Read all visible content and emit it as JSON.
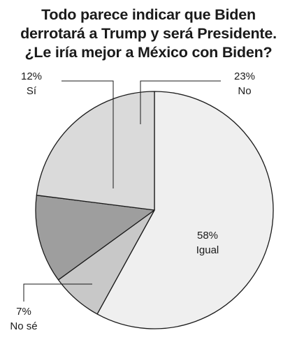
{
  "title_lines": [
    "Todo parece indicar que Biden",
    "derrotará a Trump y será Presidente.",
    "¿Le iría mejor a México con Biden?"
  ],
  "chart_data": {
    "type": "pie",
    "title": "Todo parece indicar que Biden derrotará a Trump y será Presidente. ¿Le iría mejor a México con Biden?",
    "slices": [
      {
        "label": "Igual",
        "value": 58,
        "value_label": "58%",
        "color": "#efefef"
      },
      {
        "label": "No sé",
        "value": 7,
        "value_label": "7%",
        "color": "#c8c8c8"
      },
      {
        "label": "Sí",
        "value": 12,
        "value_label": "12%",
        "color": "#9e9e9e"
      },
      {
        "label": "No",
        "value": 23,
        "value_label": "23%",
        "color": "#dadada"
      }
    ]
  }
}
